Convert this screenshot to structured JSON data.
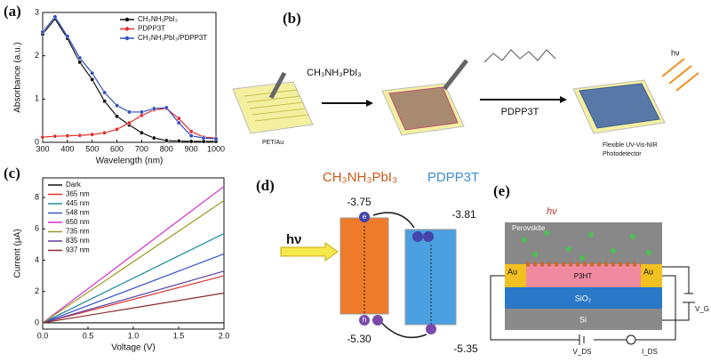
{
  "panel_labels": [
    "(a)",
    "(b)",
    "(c)",
    "(d)",
    "(e)"
  ],
  "chart_data": [
    {
      "type": "line",
      "xlabel": "Wavelength (nm)",
      "ylabel": "Absorbance (a.u.)",
      "x": [
        300,
        350,
        400,
        450,
        500,
        550,
        600,
        650,
        700,
        750,
        800,
        850,
        900,
        950,
        1000
      ],
      "xlim": [
        300,
        1000
      ],
      "xticks": [
        300,
        400,
        500,
        600,
        700,
        800,
        900,
        1000
      ],
      "ylim": [
        0,
        3
      ],
      "yticks": [
        0,
        1,
        2,
        3
      ],
      "markers": true,
      "legend": "upper right",
      "series": [
        {
          "name": "CH₃NH₃PbI₃",
          "color": "#111111",
          "values": [
            2.5,
            2.85,
            2.4,
            1.85,
            1.45,
            0.95,
            0.6,
            0.4,
            0.22,
            0.1,
            0.04,
            0.03,
            0.02,
            0.02,
            0.02
          ]
        },
        {
          "name": "PDPP3T",
          "color": "#e03030",
          "values": [
            0.12,
            0.14,
            0.15,
            0.16,
            0.18,
            0.22,
            0.3,
            0.45,
            0.62,
            0.75,
            0.78,
            0.55,
            0.25,
            0.12,
            0.1
          ]
        },
        {
          "name": "CH₃NH₃PbI₃/PDPP3T",
          "color": "#3050c0",
          "values": [
            2.55,
            2.9,
            2.45,
            1.95,
            1.6,
            1.15,
            0.85,
            0.7,
            0.7,
            0.78,
            0.8,
            0.45,
            0.15,
            0.1,
            0.08
          ]
        }
      ]
    },
    {
      "type": "line",
      "xlabel": "Voltage (V)",
      "ylabel": "Current (μA)",
      "x": [
        0,
        2
      ],
      "xlim": [
        0,
        2
      ],
      "xticks": [
        {
          "value": 0,
          "label": "0.0"
        },
        0.5,
        {
          "value": 1,
          "label": "1.0"
        },
        1.5,
        {
          "value": 2,
          "label": "2.0"
        }
      ],
      "ylim": [
        -0.4,
        9.25
      ],
      "yticks": [
        0,
        2,
        4,
        6,
        8
      ],
      "markers": false,
      "legend": "upper left",
      "series": [
        {
          "name": "Dark",
          "color": "#111111",
          "values": [
            0,
            0
          ]
        },
        {
          "name": "365 nm",
          "color": "#e03030",
          "values": [
            0,
            3.0
          ]
        },
        {
          "name": "445 nm",
          "color": "#1f8a9a",
          "values": [
            0,
            5.7
          ]
        },
        {
          "name": "548 nm",
          "color": "#3b55d0",
          "values": [
            0,
            4.4
          ]
        },
        {
          "name": "650 nm",
          "color": "#d42ad4",
          "values": [
            0,
            8.7
          ]
        },
        {
          "name": "735 nm",
          "color": "#9a9a20",
          "values": [
            0,
            7.8
          ]
        },
        {
          "name": "835 nm",
          "color": "#5a3fa0",
          "values": [
            0,
            3.3
          ]
        },
        {
          "name": "937 nm",
          "color": "#8b2a2a",
          "values": [
            0,
            1.9
          ]
        }
      ]
    }
  ],
  "fabrication": {
    "precursor": "CH₃NH₃PbI₃",
    "substrate": "PET/Au",
    "polymer": "PDPP3T",
    "light": "hν",
    "device": [
      "Flexible UV-Vis-NIR",
      "Photodetector"
    ]
  },
  "energy_diagram": {
    "left_material": "CH₃NH₃PbI₃",
    "right_material": "PDPP3T",
    "light": "hν",
    "left_lumo": "-3.75",
    "right_lumo": "-3.81",
    "left_homo": "-5.30",
    "right_homo": "-5.35",
    "electron": "e",
    "hole": "h"
  },
  "device_structure": {
    "light": "hν",
    "absorber": "Perovskite",
    "electrode_left": "Au",
    "electrode_right": "Au",
    "channel": "P3HT",
    "dielectric": "SiO₂",
    "gate": "Si",
    "gate_voltage": "V_G",
    "drain_voltage": "V_DS",
    "drain_current": "I_DS"
  }
}
